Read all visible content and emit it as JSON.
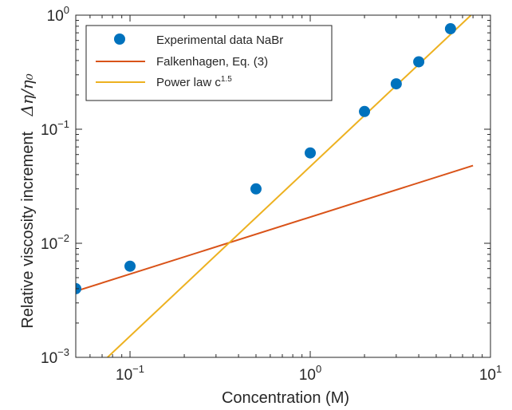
{
  "chart_data": {
    "type": "scatter",
    "xscale": "log",
    "yscale": "log",
    "xlim": [
      0.05,
      10
    ],
    "ylim": [
      0.001,
      1
    ],
    "xlabel": "Concentration (M)",
    "ylabel": "Relative viscosity increment",
    "ylabel_symbol": "Δη/η₀",
    "grid": false,
    "legend_position": "top-left",
    "x_ticks": [
      {
        "base": "10",
        "exp": "−1",
        "value": 0.1
      },
      {
        "base": "10",
        "exp": "0",
        "value": 1
      },
      {
        "base": "10",
        "exp": "1",
        "value": 10
      }
    ],
    "y_ticks": [
      {
        "base": "10",
        "exp": "−3",
        "value": 0.001
      },
      {
        "base": "10",
        "exp": "−2",
        "value": 0.01
      },
      {
        "base": "10",
        "exp": "−1",
        "value": 0.1
      },
      {
        "base": "10",
        "exp": "0",
        "value": 1
      }
    ],
    "series": [
      {
        "name": "Experimental data NaBr",
        "kind": "scatter",
        "color": "#0072BD",
        "x": [
          0.05,
          0.1,
          0.5,
          1,
          2,
          3,
          4,
          6
        ],
        "y": [
          0.004,
          0.0063,
          0.03,
          0.062,
          0.143,
          0.25,
          0.39,
          0.76
        ]
      },
      {
        "name": "Falkenhagen, Eq. (3)",
        "kind": "line",
        "color": "#D95319",
        "x": [
          0.05,
          8
        ],
        "y": [
          0.0038,
          0.048
        ]
      },
      {
        "name": "Power law c",
        "name_sup": "1.5",
        "kind": "line",
        "color": "#EDB120",
        "x": [
          0.075,
          7.8
        ],
        "y": [
          0.001,
          1
        ]
      }
    ]
  }
}
